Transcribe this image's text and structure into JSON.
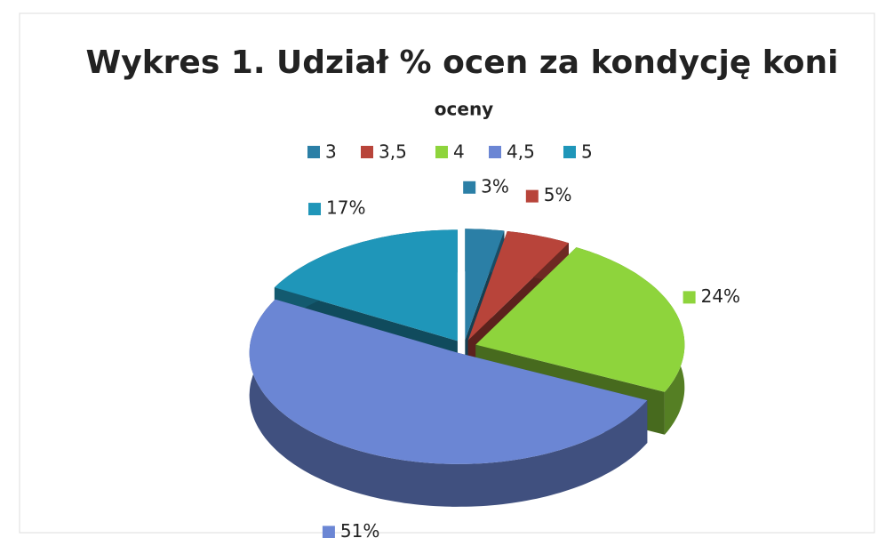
{
  "chart_data": {
    "type": "pie",
    "title": "Wykres 1. Udział % ocen za kondycję koni",
    "subtitle": "oceny",
    "categories": [
      "3",
      "3,5",
      "4",
      "4,5",
      "5"
    ],
    "values": [
      3,
      5,
      24,
      51,
      17
    ],
    "value_labels": [
      "3%",
      "5%",
      "24%",
      "51%",
      "17%"
    ],
    "colors": [
      "#2b7fa6",
      "#b8443a",
      "#8ed43c",
      "#6b86d4",
      "#1f96b9"
    ],
    "legend": "top"
  }
}
